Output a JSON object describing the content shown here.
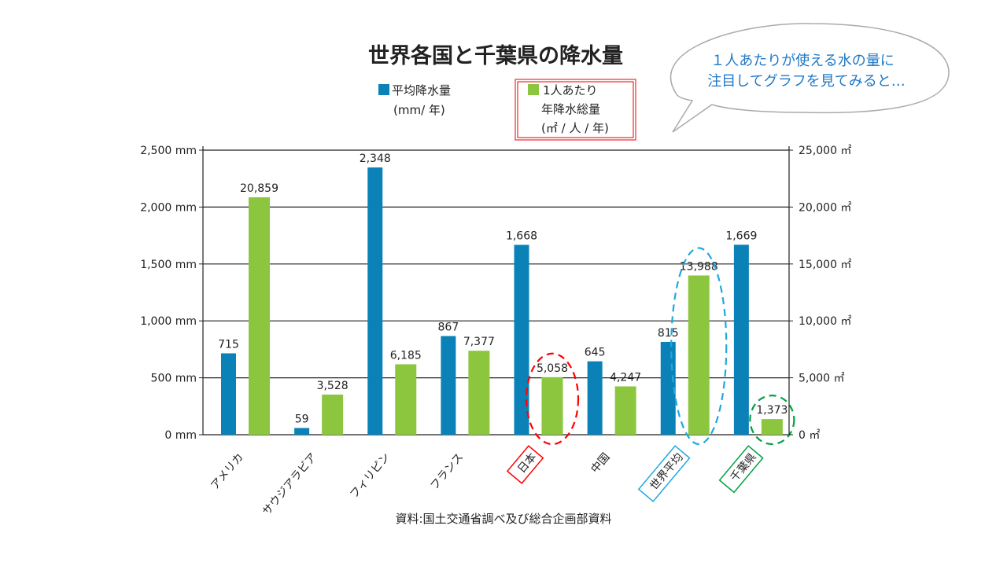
{
  "chart_data": {
    "type": "bar",
    "title": "世界各国と千葉県の降水量",
    "categories": [
      "アメリカ",
      "サウジアラビア",
      "フィリピン",
      "フランス",
      "日本",
      "中国",
      "世界平均",
      "千葉県"
    ],
    "series": [
      {
        "name": "平均降水量",
        "unit": "(mm/ 年)",
        "axis": "left",
        "color": "#0a82b8",
        "values": [
          715,
          59,
          2348,
          867,
          1668,
          645,
          815,
          1669
        ],
        "labels": [
          "715",
          "59",
          "2,348",
          "867",
          "1,668",
          "645",
          "815",
          "1,669"
        ]
      },
      {
        "name": "1人あたり",
        "name2": "年降水総量",
        "unit": "(㎡ / 人 / 年)",
        "axis": "right",
        "color": "#8cc63f",
        "values": [
          20859,
          3528,
          6185,
          7377,
          5058,
          4247,
          13988,
          1373
        ],
        "labels": [
          "20,859",
          "3,528",
          "6,185",
          "7,377",
          "5,058",
          "4,247",
          "13,988",
          "1,373"
        ]
      }
    ],
    "left_axis": {
      "ylim": [
        0,
        2500
      ],
      "ticks": [
        "0 mm",
        "500 mm",
        "1,000 mm",
        "1,500 mm",
        "2,000 mm",
        "2,500 mm"
      ]
    },
    "right_axis": {
      "ylim": [
        0,
        25000
      ],
      "ticks": [
        "0 ㎡",
        "5,000 ㎡",
        "10,000 ㎡",
        "15,000 ㎡",
        "20,000 ㎡",
        "25,000 ㎡"
      ]
    },
    "grid": true,
    "legend": "top",
    "source": "資料:国土交通省調べ及び総合企画部資料",
    "highlights": [
      {
        "category": "日本",
        "color": "#ff0000"
      },
      {
        "category": "世界平均",
        "color": "#1fa8e0"
      },
      {
        "category": "千葉県",
        "color": "#00a040"
      }
    ]
  },
  "callout": {
    "line1": "１人あたりが使える水の量に",
    "line2": "注目してグラフを見てみると…",
    "color": "#1f78c8"
  }
}
